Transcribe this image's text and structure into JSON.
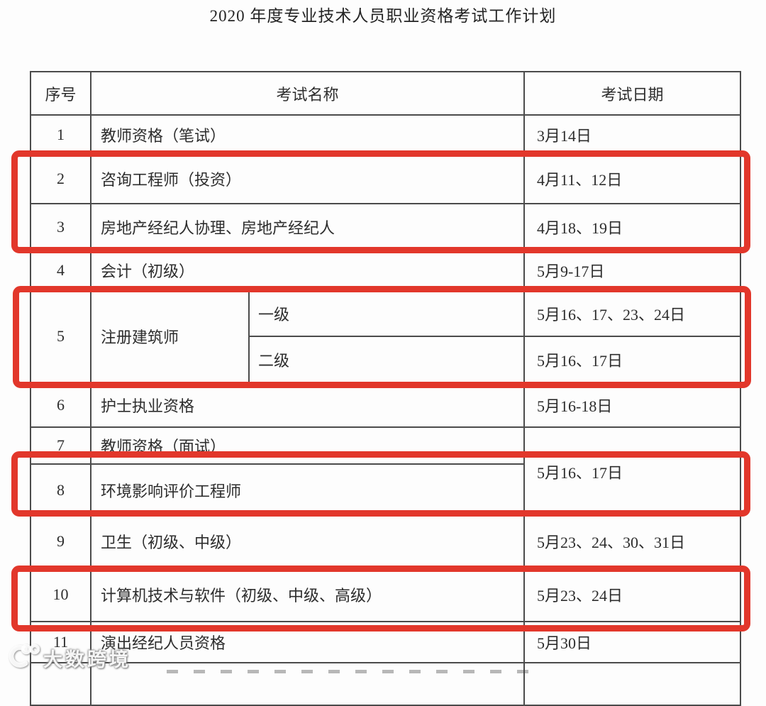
{
  "title": "2020 年度专业技术人员职业资格考试工作计划",
  "table": {
    "headers": {
      "no": "序号",
      "name": "考试名称",
      "date": "考试日期"
    },
    "rows": [
      {
        "no": "1",
        "name": "教师资格（笔试）",
        "date": "3月14日"
      },
      {
        "no": "2",
        "name": "咨询工程师（投资）",
        "date": "4月11、12日",
        "highlighted": true
      },
      {
        "no": "3",
        "name": "房地产经纪人协理、房地产经纪人",
        "date": "4月18、19日",
        "highlighted": true
      },
      {
        "no": "4",
        "name": "会计（初级）",
        "date": "5月9-17日"
      },
      {
        "no": "5",
        "name": "注册建筑师",
        "highlighted": true,
        "subrows": [
          {
            "level": "一级",
            "date": "5月16、17、23、24日"
          },
          {
            "level": "二级",
            "date": "5月16、17日"
          }
        ]
      },
      {
        "no": "6",
        "name": "护士执业资格",
        "date": "5月16-18日"
      },
      {
        "no": "7",
        "name": "教师资格（面试）",
        "date": "5月16、17日",
        "date_rowspan": 2
      },
      {
        "no": "8",
        "name": "环境影响评价工程师",
        "date_merged_with_previous": true,
        "highlighted": true
      },
      {
        "no": "9",
        "name": "卫生（初级、中级）",
        "date": "5月23、24、30、31日"
      },
      {
        "no": "10",
        "name": "计算机技术与软件（初级、中级、高级）",
        "date": "5月23、24日",
        "highlighted": true
      },
      {
        "no": "11",
        "name": "演出经纪人员资格",
        "date": "5月30日"
      }
    ],
    "highlighted_row_numbers": [
      "2",
      "3",
      "5",
      "8",
      "10"
    ]
  },
  "highlight_color": "#e2372b",
  "watermark": {
    "logo": "swirl-100-logo",
    "text": "大数跨境"
  }
}
